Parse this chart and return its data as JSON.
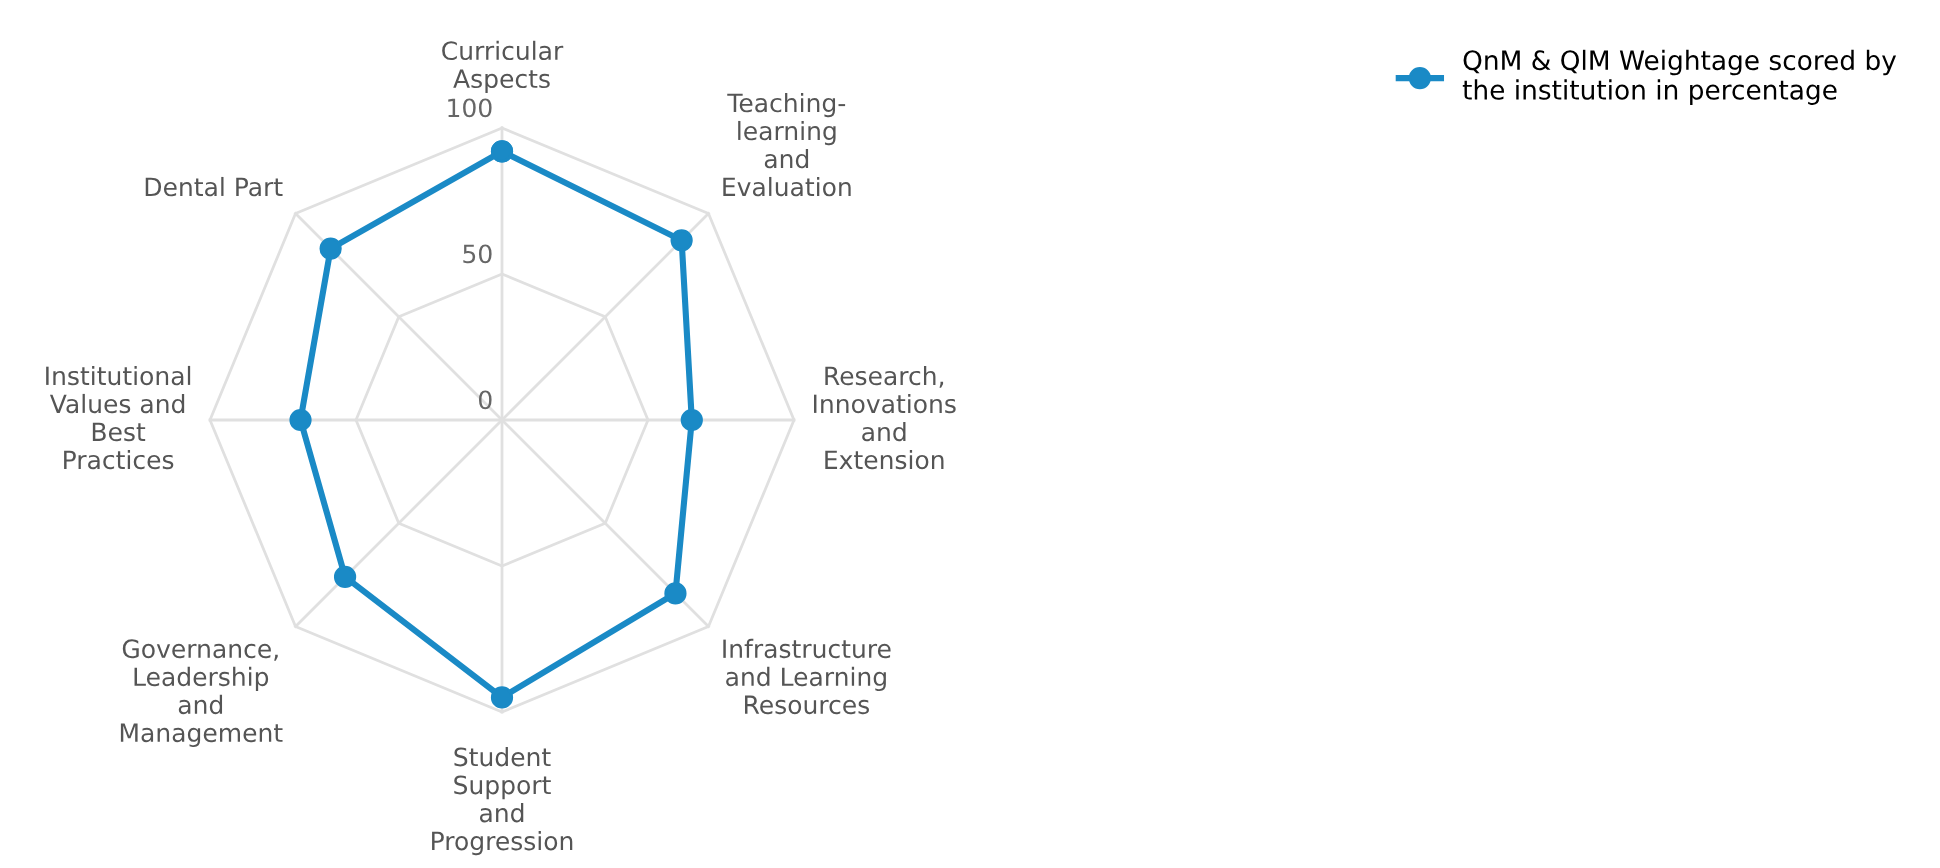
{
  "chart_data": {
    "type": "radar",
    "categories": [
      "Curricular\nAspects",
      "Teaching-\nlearning\nand\nEvaluation",
      "Research,\nInnovations\nand\nExtension",
      "Infrastructure\nand Learning\nResources",
      "Student\nSupport\nand\nProgression",
      "Governance,\nLeadership\nand\nManagement",
      "Institutional\nValues and\nBest\nPractices",
      "Dental Part"
    ],
    "series": [
      {
        "name": "QnM & QlM Weightage scored by the institution in percentage",
        "color": "#1a8ac6",
        "values": [
          92,
          87,
          65,
          84,
          95,
          76,
          69,
          83
        ]
      }
    ],
    "ylim": [
      0,
      100
    ],
    "yticks": [
      0,
      50,
      100
    ],
    "grid": true,
    "marker": "circle",
    "legend": "top right"
  }
}
